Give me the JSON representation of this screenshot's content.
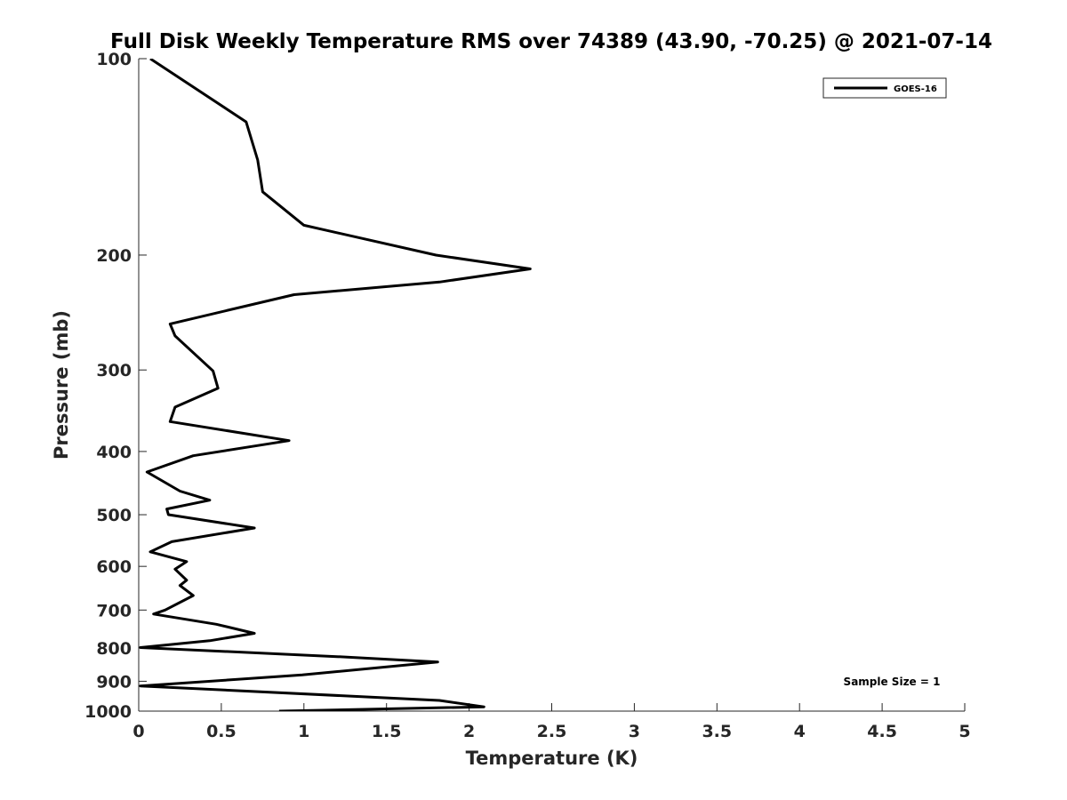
{
  "chart_data": {
    "type": "line",
    "title": "Full Disk Weekly Temperature RMS over 74389 (43.90, -70.25) @ 2021-07-14",
    "xlabel": "Temperature (K)",
    "ylabel": "Pressure (mb)",
    "xlim": [
      0,
      5
    ],
    "ylim": [
      100,
      1000
    ],
    "yscale": "log",
    "y_reversed": true,
    "xticks": [
      0,
      0.5,
      1,
      1.5,
      2,
      2.5,
      3,
      3.5,
      4,
      4.5,
      5
    ],
    "xtick_labels": [
      "0",
      "0.5",
      "1",
      "1.5",
      "2",
      "2.5",
      "3",
      "3.5",
      "4",
      "4.5",
      "5"
    ],
    "yticks": [
      100,
      200,
      300,
      400,
      500,
      600,
      700,
      800,
      900,
      1000
    ],
    "ytick_labels": [
      "100",
      "200",
      "300",
      "400",
      "500",
      "600",
      "700",
      "800",
      "900",
      "1000"
    ],
    "grid": false,
    "legend_position": "top-right",
    "series": [
      {
        "name": "GOES-16",
        "color": "#000000",
        "points": [
          [
            0.07,
            100
          ],
          [
            0.65,
            125
          ],
          [
            0.72,
            143
          ],
          [
            0.75,
            160
          ],
          [
            1.0,
            180
          ],
          [
            1.8,
            200
          ],
          [
            2.37,
            210
          ],
          [
            1.82,
            220
          ],
          [
            0.94,
            230
          ],
          [
            0.19,
            255
          ],
          [
            0.22,
            266
          ],
          [
            0.45,
            301
          ],
          [
            0.48,
            320
          ],
          [
            0.22,
            342
          ],
          [
            0.19,
            360
          ],
          [
            0.91,
            385
          ],
          [
            0.33,
            406
          ],
          [
            0.05,
            430
          ],
          [
            0.25,
            460
          ],
          [
            0.43,
            475
          ],
          [
            0.17,
            490
          ],
          [
            0.18,
            500
          ],
          [
            0.7,
            524
          ],
          [
            0.2,
            550
          ],
          [
            0.07,
            570
          ],
          [
            0.29,
            590
          ],
          [
            0.22,
            606
          ],
          [
            0.29,
            630
          ],
          [
            0.25,
            642
          ],
          [
            0.33,
            665
          ],
          [
            0.16,
            700
          ],
          [
            0.09,
            710
          ],
          [
            0.47,
            736
          ],
          [
            0.7,
            760
          ],
          [
            0.43,
            780
          ],
          [
            0.01,
            799
          ],
          [
            1.2,
            825
          ],
          [
            1.81,
            841
          ],
          [
            0.99,
            880
          ],
          [
            0.01,
            915
          ],
          [
            1.82,
            963
          ],
          [
            2.09,
            985
          ],
          [
            0.85,
            1000
          ]
        ]
      }
    ],
    "annotation": "Sample Size = 1"
  }
}
